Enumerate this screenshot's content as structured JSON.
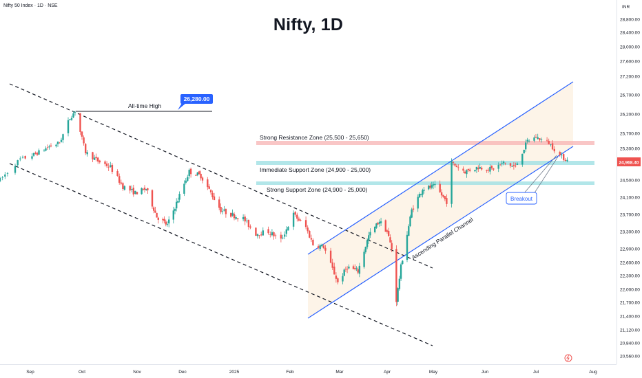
{
  "header": {
    "symbol": "Nifty 50 Index · 1D · NSE",
    "title": "Nifty, 1D",
    "currency": "INR"
  },
  "annotations": {
    "ath_label": "All-time High",
    "ath_value": "26,280.00",
    "resistance_zone": "Strong Resistance Zone (25,500 - 25,650)",
    "immediate_support_zone": "Immediate Support Zone (24,900 - 25,000)",
    "strong_support_zone": "Strong Support Zone (24,900 - 25,000)",
    "channel_label": "Ascending Parallel Channel",
    "breakout_label": "Breakout",
    "last_price": "24,968.40"
  },
  "colors": {
    "up": "#26a69a",
    "down": "#ef5350",
    "channel": "#2962ff",
    "resistance": "#f7b3b3",
    "support": "#9fe0e3",
    "channel_fill": "#fdf3e6",
    "price_tag": "#ef5350",
    "ath_tag": "#2962ff"
  },
  "chart_data": {
    "type": "candlestick",
    "y_axis": {
      "ticks": [
        "28,800.00",
        "28,400.00",
        "28,000.00",
        "27,600.00",
        "27,200.00",
        "26,700.00",
        "26,200.00",
        "25,700.00",
        "25,300.00",
        "24,900.00",
        "24,500.00",
        "24,100.00",
        "23,700.00",
        "23,300.00",
        "22,900.00",
        "22,600.00",
        "22,300.00",
        "22,000.00",
        "21,700.00",
        "21,400.00",
        "21,120.00",
        "20,840.00",
        "20,560.00"
      ]
    },
    "x_axis": {
      "ticks": [
        "Sep",
        "Oct",
        "Nov",
        "Dec",
        "2025",
        "Feb",
        "Mar",
        "Apr",
        "May",
        "Jun",
        "Jul",
        "Aug"
      ]
    },
    "price_path": [
      [
        "2024-08-20",
        24500
      ],
      [
        "2024-08-28",
        25000
      ],
      [
        "2024-09-04",
        25150
      ],
      [
        "2024-09-12",
        25350
      ],
      [
        "2024-09-18",
        25450
      ],
      [
        "2024-09-24",
        26100
      ],
      [
        "2024-09-27",
        26280
      ],
      [
        "2024-10-03",
        25200
      ],
      [
        "2024-10-10",
        24950
      ],
      [
        "2024-10-17",
        24800
      ],
      [
        "2024-10-24",
        24350
      ],
      [
        "2024-10-31",
        24200
      ],
      [
        "2024-11-07",
        24300
      ],
      [
        "2024-11-14",
        23650
      ],
      [
        "2024-11-21",
        23450
      ],
      [
        "2024-11-28",
        24050
      ],
      [
        "2024-12-05",
        24700
      ],
      [
        "2024-12-12",
        24600
      ],
      [
        "2024-12-18",
        24200
      ],
      [
        "2024-12-24",
        23800
      ],
      [
        "2024-12-30",
        23700
      ],
      [
        "2025-01-06",
        23600
      ],
      [
        "2025-01-13",
        23250
      ],
      [
        "2025-01-20",
        23300
      ],
      [
        "2025-01-27",
        23100
      ],
      [
        "2025-02-03",
        23700
      ],
      [
        "2025-02-10",
        23400
      ],
      [
        "2025-02-14",
        23000
      ],
      [
        "2025-02-20",
        22950
      ],
      [
        "2025-02-28",
        22150
      ],
      [
        "2025-03-06",
        22500
      ],
      [
        "2025-03-13",
        22400
      ],
      [
        "2025-03-20",
        23200
      ],
      [
        "2025-03-27",
        23550
      ],
      [
        "2025-04-01",
        23300
      ],
      [
        "2025-04-04",
        22900
      ],
      [
        "2025-04-07",
        21750
      ],
      [
        "2025-04-10",
        22500
      ],
      [
        "2025-04-17",
        23800
      ],
      [
        "2025-04-24",
        24300
      ],
      [
        "2025-05-02",
        24350
      ],
      [
        "2025-05-09",
        24000
      ],
      [
        "2025-05-12",
        24900
      ],
      [
        "2025-05-20",
        24700
      ],
      [
        "2025-05-28",
        24800
      ],
      [
        "2025-06-05",
        24750
      ],
      [
        "2025-06-12",
        24900
      ],
      [
        "2025-06-19",
        24800
      ],
      [
        "2025-06-26",
        25500
      ],
      [
        "2025-07-01",
        25600
      ],
      [
        "2025-07-08",
        25450
      ],
      [
        "2025-07-14",
        25100
      ],
      [
        "2025-07-18",
        24968
      ]
    ],
    "levels": [
      {
        "name": "Strong Resistance Zone",
        "low": 25500,
        "high": 25650
      },
      {
        "name": "Immediate Support Zone",
        "low": 24900,
        "high": 25000
      },
      {
        "name": "Strong Support Zone",
        "low": 24900,
        "high": 25000
      },
      {
        "name": "All-time High",
        "value": 26280
      }
    ],
    "last": 24968.4
  }
}
